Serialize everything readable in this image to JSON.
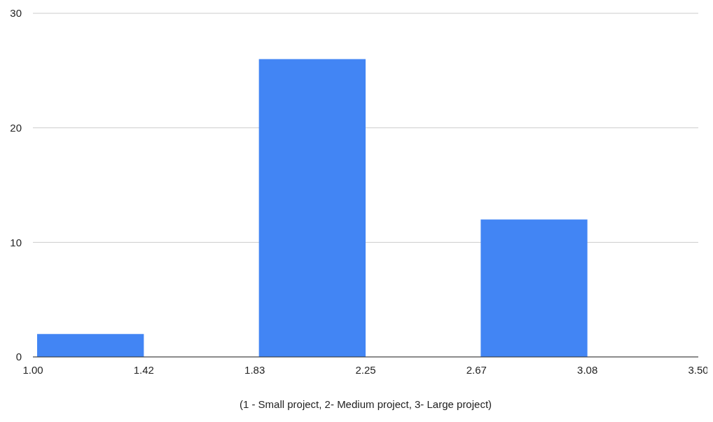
{
  "chart_data": {
    "type": "histogram",
    "xlabel": "(1 - Small project, 2- Medium project, 3- Large project)",
    "bins": [
      1,
      1.4167,
      1.8333,
      2.25,
      2.6667,
      3.0833,
      3.5
    ],
    "values": [
      2,
      0,
      26,
      0,
      12,
      0
    ],
    "color": "#4285f4",
    "xlim": [
      1,
      3.5
    ],
    "xticks": [
      {
        "value": 1,
        "label": "1.00"
      },
      {
        "value": 1.4167,
        "label": "1.42"
      },
      {
        "value": 1.8333,
        "label": "1.83"
      },
      {
        "value": 2.25,
        "label": "2.25"
      },
      {
        "value": 2.6667,
        "label": "2.67"
      },
      {
        "value": 3.0833,
        "label": "3.08"
      },
      {
        "value": 3.5,
        "label": "3.50"
      }
    ],
    "ylim": [
      0,
      30
    ],
    "yticks": [
      0,
      10,
      20,
      30
    ],
    "grid": "y"
  }
}
